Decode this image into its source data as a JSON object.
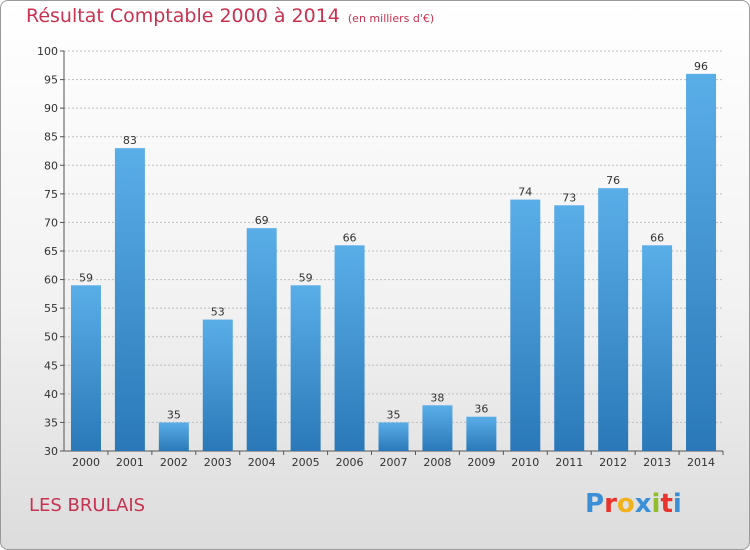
{
  "title": "Résultat Comptable 2000 à 2014",
  "subtitle": "(en milliers d'€)",
  "commune": "LES BRULAIS",
  "logo": {
    "text": "Proxiti",
    "letter_colors": [
      "#3a8fd6",
      "#e8342c",
      "#f2b21b",
      "#3a8fd6",
      "#8fbe2a",
      "#e8342c",
      "#3a8fd6"
    ]
  },
  "colors": {
    "title": "#c83250",
    "bar_top": "#5aaee8",
    "bar_bottom": "#2a78b8",
    "grid": "#bfbfbf"
  },
  "chart_data": {
    "type": "bar",
    "title": "Résultat Comptable 2000 à 2014",
    "subtitle": "(en milliers d'€)",
    "xlabel": "",
    "ylabel": "",
    "categories": [
      "2000",
      "2001",
      "2002",
      "2003",
      "2004",
      "2005",
      "2006",
      "2007",
      "2008",
      "2009",
      "2010",
      "2011",
      "2012",
      "2013",
      "2014"
    ],
    "values": [
      59,
      83,
      35,
      53,
      69,
      59,
      66,
      35,
      38,
      36,
      74,
      73,
      76,
      66,
      96
    ],
    "ylim": [
      30,
      100
    ],
    "yticks": [
      30,
      35,
      40,
      45,
      50,
      55,
      60,
      65,
      70,
      75,
      80,
      85,
      90,
      95,
      100
    ],
    "grid": true,
    "data_labels": true
  }
}
